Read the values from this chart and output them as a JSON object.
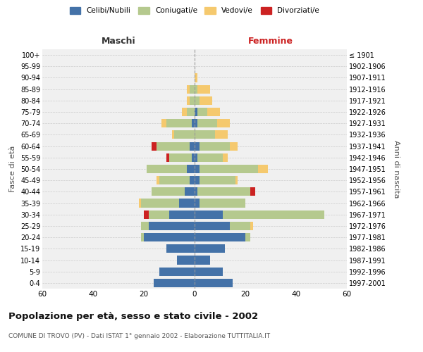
{
  "age_groups": [
    "0-4",
    "5-9",
    "10-14",
    "15-19",
    "20-24",
    "25-29",
    "30-34",
    "35-39",
    "40-44",
    "45-49",
    "50-54",
    "55-59",
    "60-64",
    "65-69",
    "70-74",
    "75-79",
    "80-84",
    "85-89",
    "90-94",
    "95-99",
    "100+"
  ],
  "birth_years": [
    "1997-2001",
    "1992-1996",
    "1987-1991",
    "1982-1986",
    "1977-1981",
    "1972-1976",
    "1967-1971",
    "1962-1966",
    "1957-1961",
    "1952-1956",
    "1947-1951",
    "1942-1946",
    "1937-1941",
    "1932-1936",
    "1927-1931",
    "1922-1926",
    "1917-1921",
    "1912-1916",
    "1907-1911",
    "1902-1906",
    "≤ 1901"
  ],
  "male": {
    "celibi": [
      16,
      14,
      7,
      11,
      20,
      18,
      10,
      6,
      4,
      2,
      3,
      1,
      2,
      0,
      1,
      0,
      0,
      0,
      0,
      0,
      0
    ],
    "coniugati": [
      0,
      0,
      0,
      0,
      1,
      3,
      8,
      15,
      13,
      12,
      16,
      9,
      13,
      8,
      10,
      3,
      2,
      2,
      0,
      0,
      0
    ],
    "vedovi": [
      0,
      0,
      0,
      0,
      0,
      0,
      0,
      1,
      0,
      1,
      0,
      0,
      0,
      1,
      2,
      2,
      1,
      1,
      0,
      0,
      0
    ],
    "divorziati": [
      0,
      0,
      0,
      0,
      0,
      0,
      2,
      0,
      0,
      0,
      0,
      1,
      2,
      0,
      0,
      0,
      0,
      0,
      0,
      0,
      0
    ]
  },
  "female": {
    "nubili": [
      15,
      11,
      6,
      12,
      20,
      14,
      11,
      2,
      1,
      2,
      2,
      1,
      2,
      0,
      1,
      1,
      0,
      0,
      0,
      0,
      0
    ],
    "coniugate": [
      0,
      0,
      0,
      0,
      2,
      8,
      40,
      18,
      21,
      14,
      23,
      10,
      12,
      8,
      8,
      4,
      2,
      1,
      0,
      0,
      0
    ],
    "vedove": [
      0,
      0,
      0,
      0,
      0,
      1,
      0,
      0,
      0,
      1,
      4,
      2,
      3,
      5,
      5,
      5,
      5,
      5,
      1,
      0,
      0
    ],
    "divorziate": [
      0,
      0,
      0,
      0,
      0,
      0,
      0,
      0,
      2,
      0,
      0,
      0,
      0,
      0,
      0,
      0,
      0,
      0,
      0,
      0,
      0
    ]
  },
  "colors": {
    "celibi_nubili": "#4472a8",
    "coniugati": "#b5c98e",
    "vedovi": "#f5c96e",
    "divorziati": "#cc2222"
  },
  "xlim": 60,
  "title": "Popolazione per età, sesso e stato civile - 2002",
  "subtitle": "COMUNE DI TROVO (PV) - Dati ISTAT 1° gennaio 2002 - Elaborazione TUTTITALIA.IT",
  "xlabel_left": "Maschi",
  "xlabel_right": "Femmine",
  "ylabel_left": "Fasce di età",
  "ylabel_right": "Anni di nascita",
  "legend_labels": [
    "Celibi/Nubili",
    "Coniugati/e",
    "Vedovi/e",
    "Divorziati/e"
  ],
  "bg_color": "#f0f0f0",
  "grid_color": "#cccccc"
}
